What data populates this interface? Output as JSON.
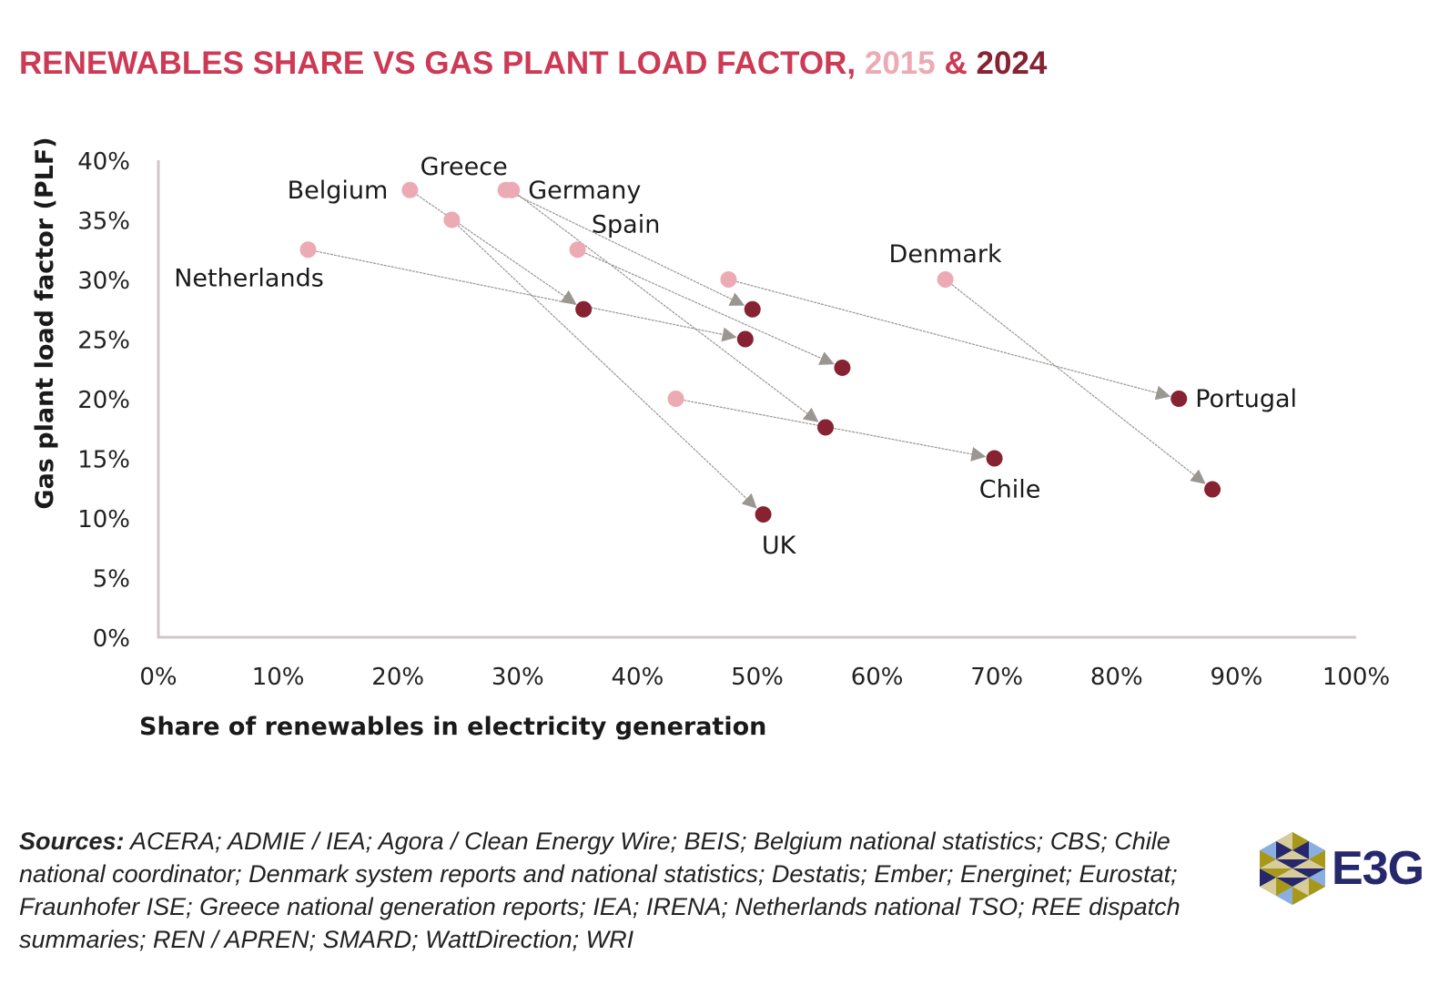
{
  "title": {
    "main": "RENEWABLES SHARE VS GAS PLANT LOAD FACTOR, ",
    "year1": "2015",
    "amp": " & ",
    "year2": "2024"
  },
  "colors": {
    "title": "#cc3a55",
    "y2015": "#ecaab5",
    "y2024": "#862232",
    "arrow": "#9a9793",
    "axis": "#cfc7c7"
  },
  "chart_data": {
    "type": "scatter",
    "title": "Renewables share vs gas plant load factor, 2015 & 2024",
    "xlabel": "Share of renewables in electricity generation",
    "ylabel": "Gas plant load factor (PLF)",
    "xlim": [
      0,
      100
    ],
    "ylim": [
      0,
      40
    ],
    "xticks": [
      "0%",
      "10%",
      "20%",
      "30%",
      "40%",
      "50%",
      "60%",
      "70%",
      "80%",
      "90%",
      "100%"
    ],
    "yticks": [
      "0%",
      "5%",
      "10%",
      "15%",
      "20%",
      "25%",
      "30%",
      "35%",
      "40%"
    ],
    "grid": false,
    "series_names": [
      "2015",
      "2024"
    ],
    "points": [
      {
        "country": "Netherlands",
        "x2015": 12.5,
        "y2015": 32.5,
        "x2024": 49.0,
        "y2024": 25.0,
        "label_on": "2015",
        "label_pos": "below-left"
      },
      {
        "country": "Belgium",
        "x2015": 21.0,
        "y2015": 37.5,
        "x2024": 35.5,
        "y2024": 27.5,
        "label_on": "2015",
        "label_pos": "left"
      },
      {
        "country": "UK",
        "x2015": 24.5,
        "y2015": 35.0,
        "x2024": 50.5,
        "y2024": 10.3,
        "label_on": "2024",
        "label_pos": "below"
      },
      {
        "country": "Greece",
        "x2015": 29.0,
        "y2015": 37.5,
        "x2024": 49.6,
        "y2024": 27.5,
        "label_on": "2015",
        "label_pos": "above-left"
      },
      {
        "country": "Germany",
        "x2015": 29.5,
        "y2015": 37.5,
        "x2024": 55.7,
        "y2024": 17.6,
        "label_on": "2015",
        "label_pos": "right"
      },
      {
        "country": "Spain",
        "x2015": 35.0,
        "y2015": 32.5,
        "x2024": 57.1,
        "y2024": 22.6,
        "label_on": "2015",
        "label_pos": "above-right"
      },
      {
        "country": "Chile",
        "x2015": 43.2,
        "y2015": 20.0,
        "x2024": 69.8,
        "y2024": 15.0,
        "label_on": "2024",
        "label_pos": "below"
      },
      {
        "country": "Portugal",
        "x2015": 47.6,
        "y2015": 30.0,
        "x2024": 85.2,
        "y2024": 20.0,
        "label_on": "2024",
        "label_pos": "right"
      },
      {
        "country": "Denmark",
        "x2015": 65.7,
        "y2015": 30.0,
        "x2024": 88.0,
        "y2024": 12.4,
        "label_on": "2015",
        "label_pos": "above"
      }
    ]
  },
  "footer": {
    "sources_label": "Sources:",
    "sources_text": " ACERA; ADMIE / IEA; Agora / Clean Energy Wire; BEIS; Belgium national statistics; CBS; Chile national coordinator; Denmark system reports and national statistics; Destatis; Ember; Energinet; Eurostat; Fraunhofer ISE; Greece national generation reports; IEA; IRENA; Netherlands national TSO; REE dispatch summaries; REN / APREN; SMARD; WattDirection; WRI",
    "logo_text": "E3G"
  }
}
